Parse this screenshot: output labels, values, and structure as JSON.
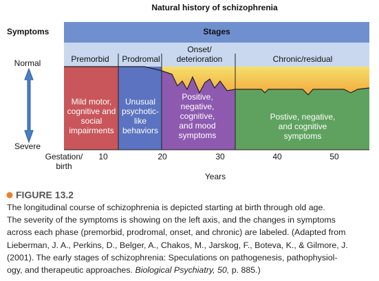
{
  "figure": {
    "title": "Natural history of schizophrenia",
    "y_axis_title": "Symptoms",
    "y_top": "Normal",
    "y_bottom": "Severe",
    "stages_title": "Stages",
    "phases": [
      {
        "label": [
          "Premorbid"
        ],
        "box": [
          "Mild motor,",
          "cognitive and",
          "social",
          "impairments"
        ]
      },
      {
        "label": [
          "Prodromal"
        ],
        "box": [
          "Unusual",
          "psychotic-",
          "like",
          "behaviors"
        ]
      },
      {
        "label": [
          "Onset/",
          "deterioration"
        ],
        "box": [
          "Positive,",
          "negative,",
          "cognitive,",
          "and mood",
          "symptoms"
        ]
      },
      {
        "label": [
          "Chronic/residual"
        ],
        "box": [
          "Postive, negative,",
          "and cognitive",
          "symptoms"
        ]
      }
    ],
    "x_ticks": [
      [
        "Gestation/",
        "birth"
      ],
      "10",
      "20",
      "30",
      "40",
      "50"
    ],
    "x_axis_title": "Years"
  },
  "caption": {
    "label": "FIGURE 13.2",
    "lines": [
      "The longitudinal course of schizophrenia is depicted starting at birth through old age.",
      "The severity of the symptoms is showing on the left axis, and the changes in symptoms",
      "across each phase (premorbid, prodromal, onset, and chronic) are labeled.  (Adapted from",
      "Lieberman, J. A., Perkins, D., Belger, A., Chakos, M., Jarskog, F., Boteva, K., & Gilmore, J.",
      "(2001). The early stages of schizophrenia: Speculations on pathogenesis, pathophysiol-"
    ],
    "last_line": [
      "ogy, and therapeutic approaches. ",
      "Biological Psychiatry, 50,",
      " p. 885.)"
    ]
  }
}
